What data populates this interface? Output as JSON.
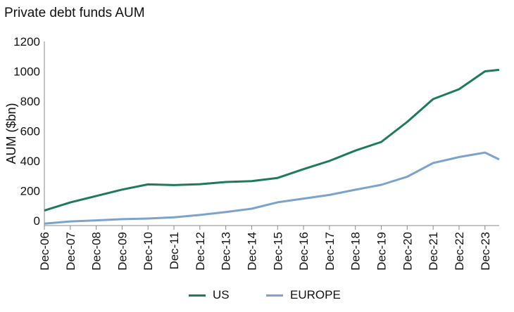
{
  "title": "Private debt funds AUM",
  "chart_data": {
    "type": "line",
    "title": "Private debt funds AUM",
    "ylabel": "AUM ($bn)",
    "xlabel": "",
    "ylim": [
      0,
      1200
    ],
    "yticks": [
      0,
      200,
      400,
      600,
      800,
      1000,
      1200
    ],
    "categories": [
      "Dec-06",
      "Dec-07",
      "Dec-08",
      "Dec-09",
      "Dec-10",
      "Dec-11",
      "Dec-12",
      "Dec-13",
      "Dec-14",
      "Dec-15",
      "Dec-16",
      "Dec-17",
      "Dec-18",
      "Dec-19",
      "Dec-20",
      "Dec-21",
      "Dec-22",
      "Dec-23"
    ],
    "legend_position": "bottom-center",
    "x": [
      2006,
      2007,
      2008,
      2009,
      2010,
      2011,
      2012,
      2013,
      2014,
      2015,
      2016,
      2017,
      2018,
      2019,
      2020,
      2021,
      2022,
      2023,
      2023.55
    ],
    "series": [
      {
        "name": "US",
        "color": "#1d7a5a",
        "values": [
          68,
          122,
          165,
          208,
          243,
          238,
          244,
          259,
          265,
          286,
          345,
          400,
          469,
          527,
          661,
          814,
          880,
          1000,
          1010
        ]
      },
      {
        "name": "EUROPE",
        "color": "#7ba3cc",
        "values": [
          -20,
          -5,
          2,
          10,
          14,
          22,
          38,
          58,
          80,
          123,
          148,
          172,
          207,
          240,
          294,
          386,
          426,
          456,
          410
        ]
      }
    ]
  }
}
